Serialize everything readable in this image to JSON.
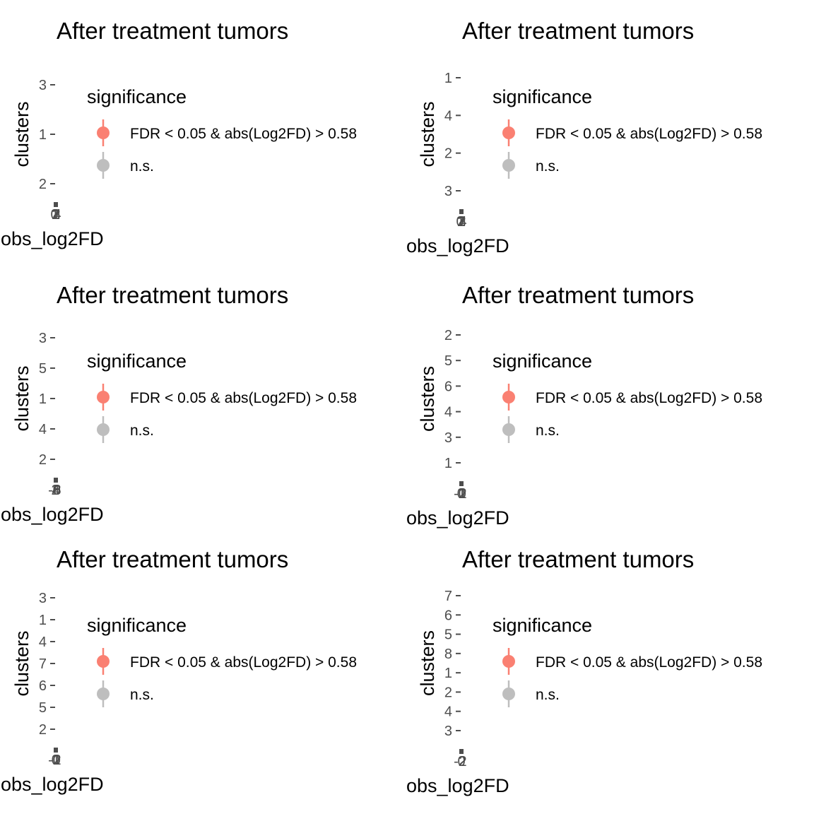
{
  "chart_data": [
    {
      "type": "scatter",
      "title": "After treatment tumors",
      "xlabel": "obs_log2FD",
      "ylabel": "clusters",
      "y_categories": [
        "2",
        "1",
        "3"
      ],
      "x_ticks": [
        "0",
        "1",
        "2",
        "3",
        "4"
      ],
      "legend": {
        "title": "significance",
        "position": "right",
        "items": [
          "FDR < 0.05 & abs(Log2FD) > 0.58",
          "n.s."
        ]
      },
      "grid": false
    },
    {
      "type": "scatter",
      "title": "After treatment tumors",
      "xlabel": "obs_log2FD",
      "ylabel": "clusters",
      "y_categories": [
        "3",
        "2",
        "4",
        "1"
      ],
      "x_ticks": [
        "0",
        "1",
        "2",
        "3",
        "4"
      ],
      "legend": {
        "title": "significance",
        "position": "right",
        "items": [
          "FDR < 0.05 & abs(Log2FD) > 0.58",
          "n.s."
        ]
      },
      "grid": false
    },
    {
      "type": "scatter",
      "title": "After treatment tumors",
      "xlabel": "obs_log2FD",
      "ylabel": "clusters",
      "y_categories": [
        "2",
        "4",
        "1",
        "5",
        "3"
      ],
      "x_ticks": [
        "-0",
        "2",
        "4",
        "6",
        "8"
      ],
      "legend": {
        "title": "significance",
        "position": "right",
        "items": [
          "FDR < 0.05 & abs(Log2FD) > 0.58",
          "n.s."
        ]
      },
      "grid": false
    },
    {
      "type": "scatter",
      "title": "After treatment tumors",
      "xlabel": "obs_log2FD",
      "ylabel": "clusters",
      "y_categories": [
        "1",
        "3",
        "4",
        "6",
        "5",
        "2"
      ],
      "x_ticks": [
        "-0",
        "0",
        "1",
        "2"
      ],
      "legend": {
        "title": "significance",
        "position": "right",
        "items": [
          "FDR < 0.05 & abs(Log2FD) > 0.58",
          "n.s."
        ]
      },
      "grid": false
    },
    {
      "type": "scatter",
      "title": "After treatment tumors",
      "xlabel": "obs_log2FD",
      "ylabel": "clusters",
      "y_categories": [
        "2",
        "5",
        "6",
        "7",
        "4",
        "1",
        "3"
      ],
      "x_ticks": [
        "-0",
        "0",
        "1",
        "2"
      ],
      "legend": {
        "title": "significance",
        "position": "right",
        "items": [
          "FDR < 0.05 & abs(Log2FD) > 0.58",
          "n.s."
        ]
      },
      "grid": false
    },
    {
      "type": "scatter",
      "title": "After treatment tumors",
      "xlabel": "obs_log2FD",
      "ylabel": "clusters",
      "y_categories": [
        "3",
        "4",
        "2",
        "1",
        "8",
        "5",
        "6",
        "7"
      ],
      "x_ticks": [
        "-2",
        "0",
        "2"
      ],
      "legend": {
        "title": "significance",
        "position": "right",
        "items": [
          "FDR < 0.05 & abs(Log2FD) > 0.58",
          "n.s."
        ]
      },
      "grid": false
    }
  ],
  "colors": {
    "significant": "#fa8072",
    "not_significant": "#bebebe",
    "tick": "#4d4d4d"
  }
}
